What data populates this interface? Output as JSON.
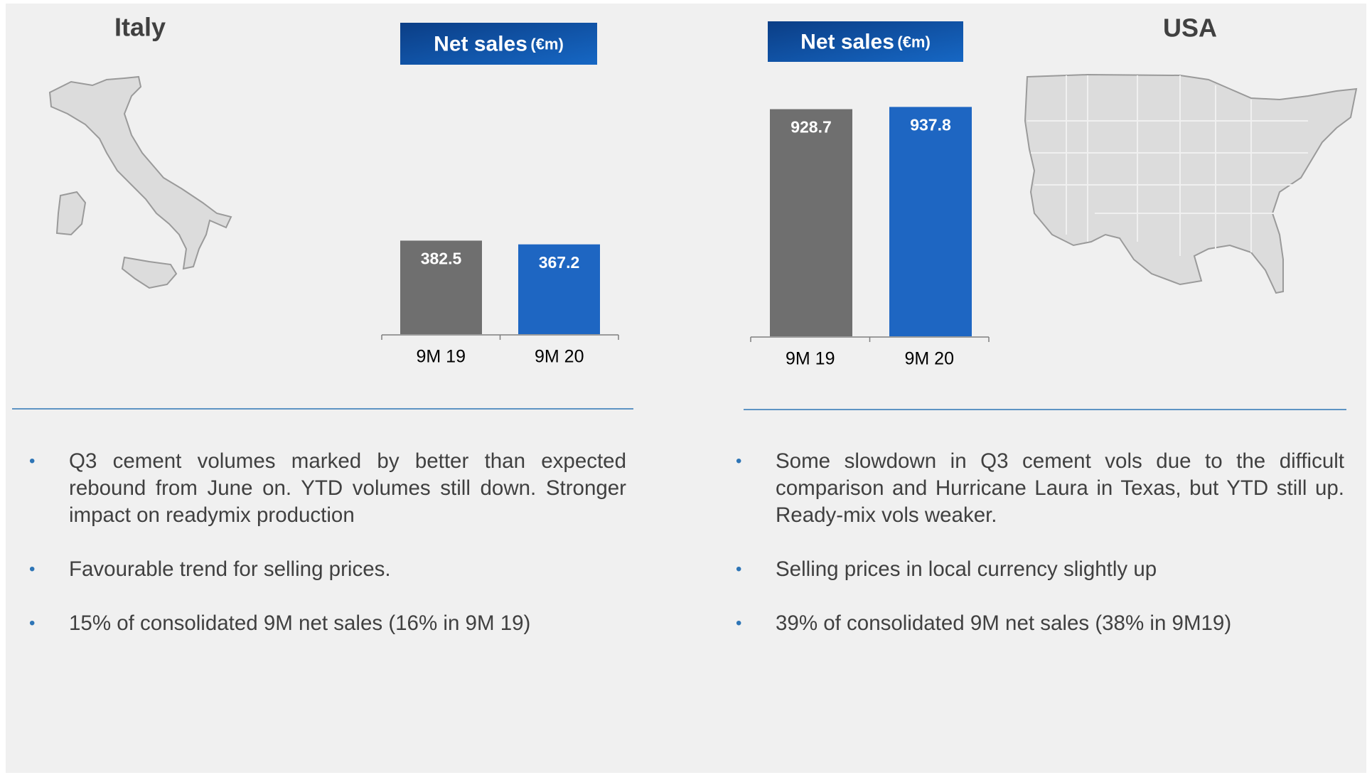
{
  "panels": [
    {
      "region": "Italy",
      "bullets": [
        "Q3 cement volumes marked by better than expected rebound from June on. YTD volumes still down. Stronger impact on readymix production",
        "Favourable trend for selling prices.",
        "15% of consolidated 9M net sales (16% in 9M 19)"
      ]
    },
    {
      "region": "USA",
      "bullets": [
        "Some slowdown in Q3 cement vols due to the difficult comparison and Hurricane Laura in Texas, but YTD still up. Ready-mix vols weaker.",
        "Selling prices in local currency slightly up",
        "39% of consolidated 9M net sales (38% in 9M19)"
      ]
    }
  ],
  "chart_data": [
    {
      "type": "bar",
      "title": "Net sales",
      "subtitle": "(€m)",
      "categories": [
        "9M 19",
        "9M 20"
      ],
      "values": [
        382.5,
        367.2
      ],
      "colors": [
        "#6f6f6f",
        "#1e66c2"
      ]
    },
    {
      "type": "bar",
      "title": "Net sales",
      "subtitle": "(€m)",
      "categories": [
        "9M 19",
        "9M 20"
      ],
      "values": [
        928.7,
        937.8
      ],
      "colors": [
        "#6f6f6f",
        "#1e66c2"
      ]
    }
  ]
}
